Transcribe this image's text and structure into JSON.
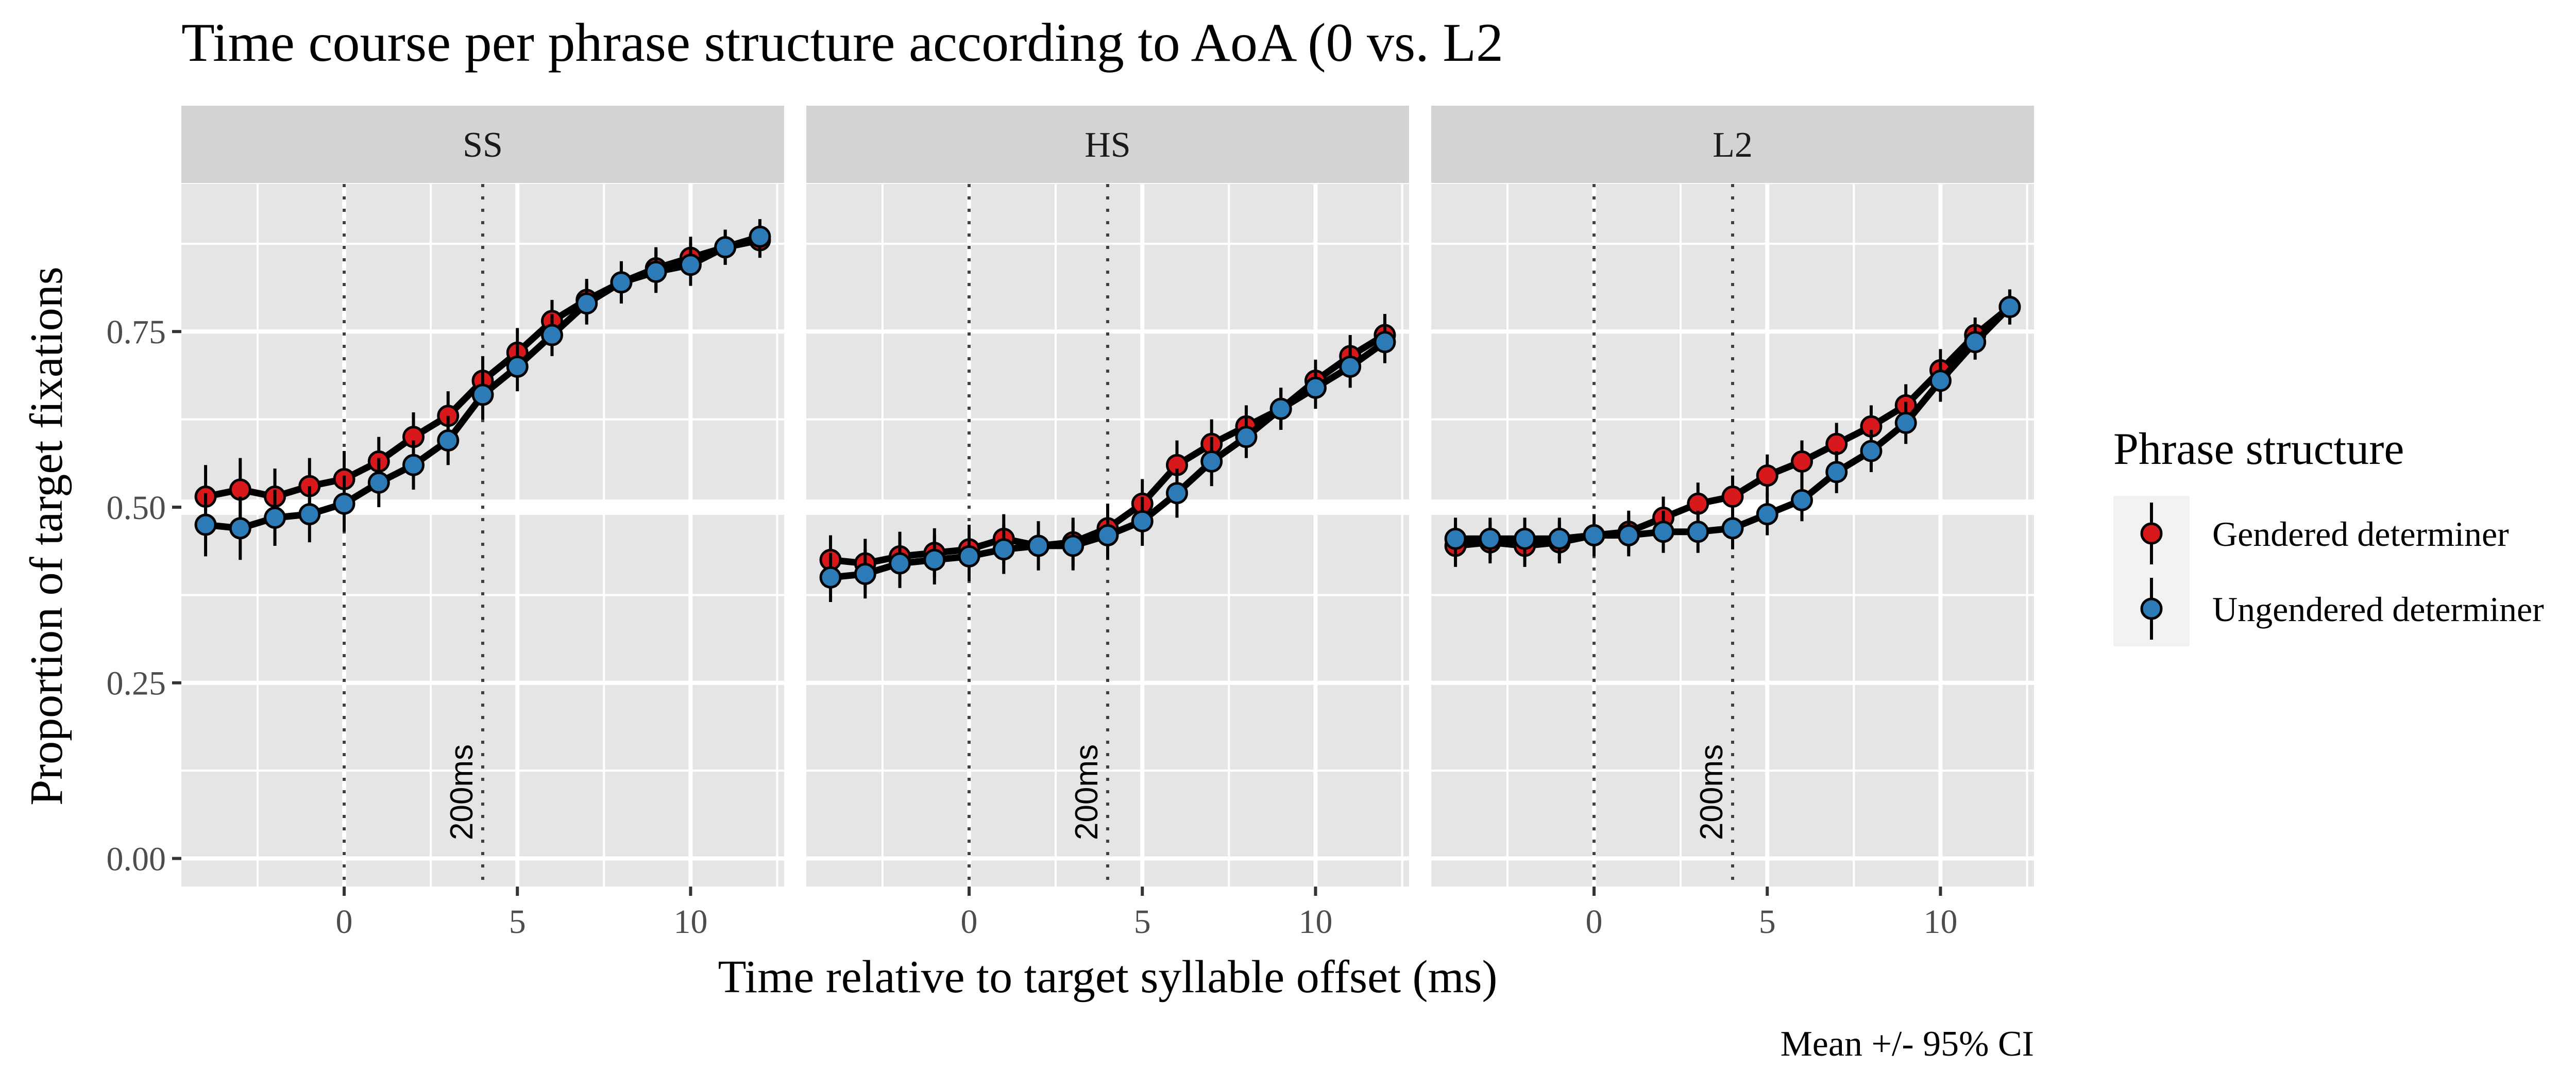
{
  "chart_data": {
    "type": "line",
    "title": "Time course per phrase structure according to AoA (0 vs. L2",
    "xlabel": "Time relative to target syllable offset (ms)",
    "ylabel": "Proportion of target fixations",
    "caption": "Mean +/- 95% CI",
    "facets": [
      "SS",
      "HS",
      "L2"
    ],
    "x": [
      -4,
      -3,
      -2,
      -1,
      0,
      1,
      2,
      3,
      4,
      5,
      6,
      7,
      8,
      9,
      10,
      11,
      12
    ],
    "xlim": [
      -4.7,
      12.7
    ],
    "ylim": [
      -0.04,
      0.96
    ],
    "x_ticks": [
      0,
      5,
      10
    ],
    "x_tick_labels": [
      "0",
      "5",
      "10"
    ],
    "y_ticks": [
      0,
      0.25,
      0.5,
      0.75
    ],
    "y_tick_labels": [
      "0.00",
      "0.25",
      "0.50",
      "0.75"
    ],
    "vlines": [
      {
        "x": 0,
        "style": "dotted"
      },
      {
        "x": 4,
        "style": "dotted",
        "label": "200ms"
      }
    ],
    "legend": {
      "title": "Phrase structure",
      "position": "right",
      "entries": [
        "Gendered determiner",
        "Ungendered determiner"
      ]
    },
    "colors": {
      "gendered": "#d7191c",
      "ungendered": "#2c7bb6",
      "panel_bg": "#e5e5e5",
      "strip_bg": "#d3d3d3",
      "grid": "#ffffff"
    },
    "panels": [
      {
        "facet": "SS",
        "series": [
          {
            "name": "Gendered determiner",
            "values": [
              0.515,
              0.525,
              0.515,
              0.53,
              0.54,
              0.565,
              0.6,
              0.63,
              0.68,
              0.72,
              0.765,
              0.795,
              0.82,
              0.84,
              0.855,
              0.87,
              0.88
            ],
            "ci": [
              0.045,
              0.045,
              0.04,
              0.04,
              0.04,
              0.035,
              0.035,
              0.035,
              0.035,
              0.035,
              0.03,
              0.03,
              0.03,
              0.03,
              0.03,
              0.025,
              0.025
            ]
          },
          {
            "name": "Ungendered determiner",
            "values": [
              0.475,
              0.47,
              0.485,
              0.49,
              0.505,
              0.535,
              0.56,
              0.595,
              0.66,
              0.7,
              0.745,
              0.79,
              0.82,
              0.835,
              0.845,
              0.87,
              0.885
            ],
            "ci": [
              0.045,
              0.045,
              0.04,
              0.04,
              0.04,
              0.035,
              0.035,
              0.035,
              0.035,
              0.035,
              0.03,
              0.03,
              0.03,
              0.03,
              0.03,
              0.025,
              0.025
            ]
          }
        ]
      },
      {
        "facet": "HS",
        "series": [
          {
            "name": "Gendered determiner",
            "values": [
              0.425,
              0.42,
              0.43,
              0.435,
              0.44,
              0.455,
              0.445,
              0.45,
              0.47,
              0.505,
              0.56,
              0.59,
              0.615,
              0.64,
              0.68,
              0.715,
              0.745
            ],
            "ci": [
              0.035,
              0.035,
              0.035,
              0.035,
              0.035,
              0.035,
              0.035,
              0.035,
              0.035,
              0.035,
              0.035,
              0.035,
              0.03,
              0.03,
              0.03,
              0.03,
              0.03
            ]
          },
          {
            "name": "Ungendered determiner",
            "values": [
              0.4,
              0.405,
              0.42,
              0.425,
              0.43,
              0.44,
              0.445,
              0.445,
              0.46,
              0.48,
              0.52,
              0.565,
              0.6,
              0.64,
              0.67,
              0.7,
              0.735
            ],
            "ci": [
              0.035,
              0.035,
              0.035,
              0.035,
              0.035,
              0.035,
              0.035,
              0.035,
              0.035,
              0.035,
              0.035,
              0.035,
              0.03,
              0.03,
              0.03,
              0.03,
              0.03
            ]
          }
        ]
      },
      {
        "facet": "L2",
        "series": [
          {
            "name": "Gendered determiner",
            "values": [
              0.445,
              0.45,
              0.445,
              0.45,
              0.46,
              0.465,
              0.485,
              0.505,
              0.515,
              0.545,
              0.565,
              0.59,
              0.615,
              0.645,
              0.695,
              0.745,
              0.785
            ],
            "ci": [
              0.03,
              0.03,
              0.03,
              0.03,
              0.03,
              0.03,
              0.03,
              0.03,
              0.03,
              0.03,
              0.03,
              0.03,
              0.03,
              0.03,
              0.03,
              0.025,
              0.025
            ]
          },
          {
            "name": "Ungendered determiner",
            "values": [
              0.455,
              0.455,
              0.455,
              0.455,
              0.46,
              0.46,
              0.465,
              0.465,
              0.47,
              0.49,
              0.51,
              0.55,
              0.58,
              0.62,
              0.68,
              0.735,
              0.785
            ],
            "ci": [
              0.03,
              0.03,
              0.03,
              0.03,
              0.03,
              0.03,
              0.03,
              0.03,
              0.03,
              0.03,
              0.03,
              0.03,
              0.03,
              0.03,
              0.03,
              0.025,
              0.025
            ]
          }
        ]
      }
    ]
  }
}
